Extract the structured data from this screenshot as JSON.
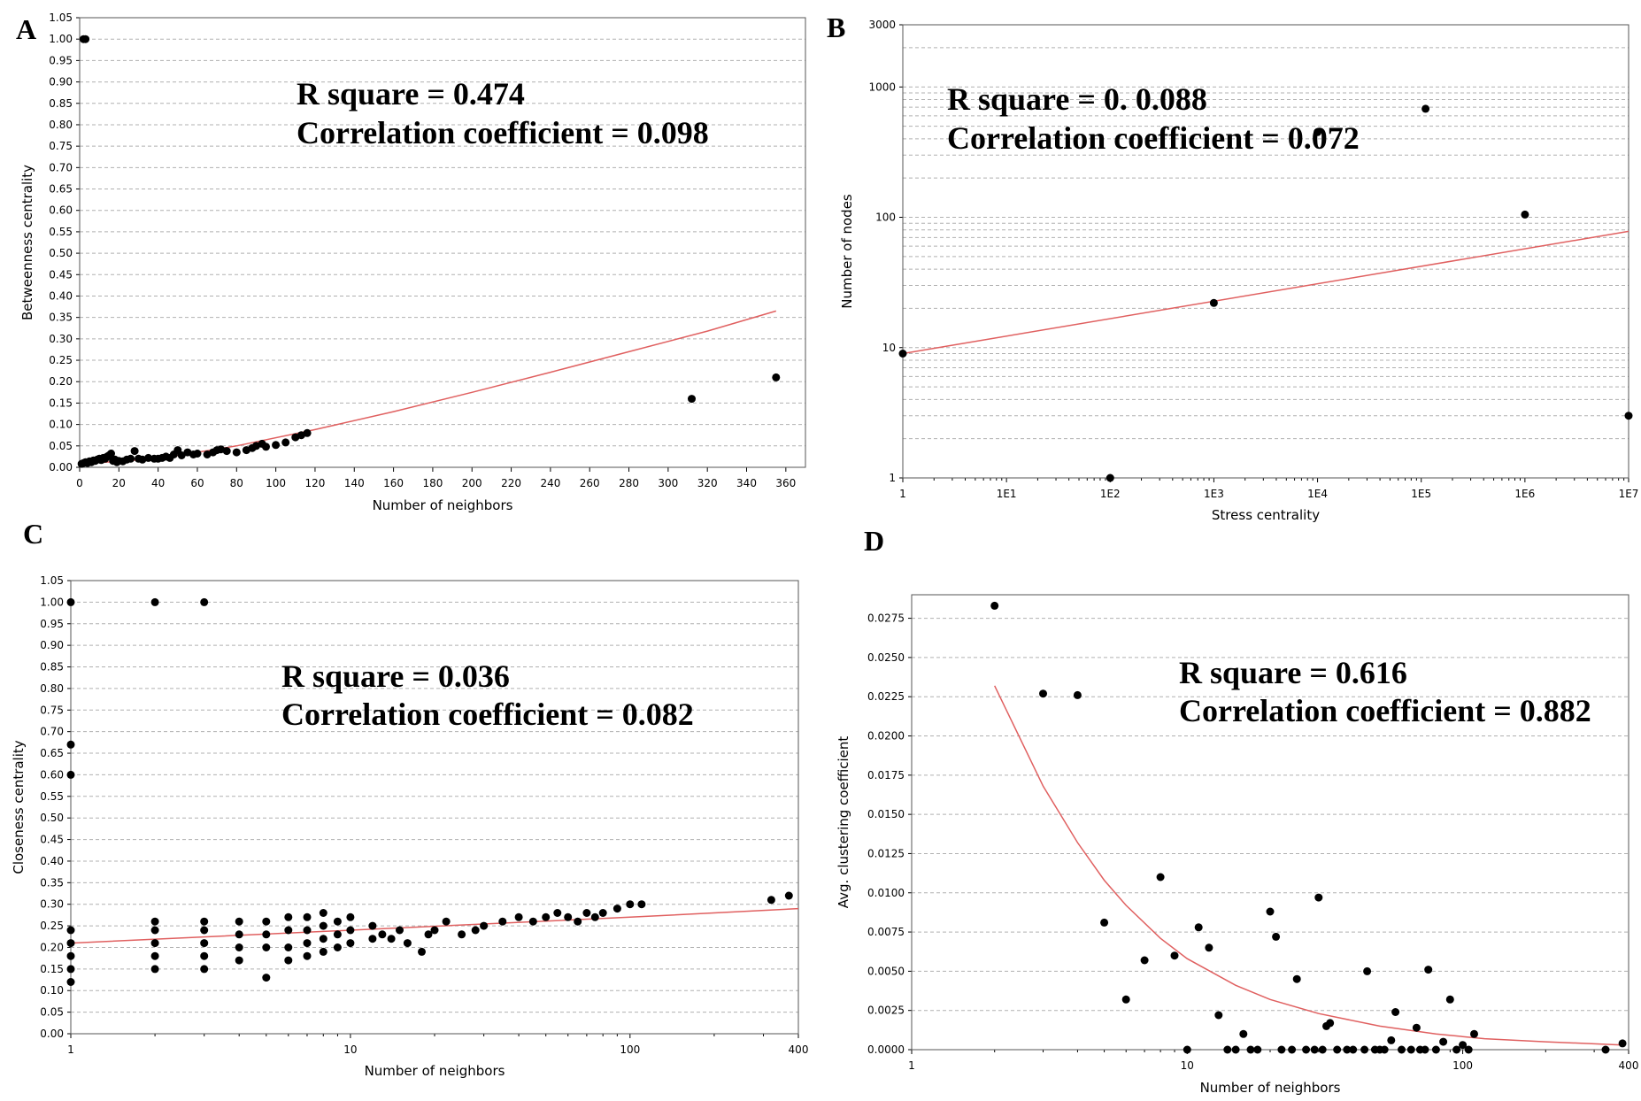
{
  "chart_data": [
    {
      "id": "A",
      "type": "scatter",
      "panel_label": "A",
      "xscale": "linear",
      "yscale": "linear",
      "xlim": [
        0,
        370
      ],
      "ylim": [
        0,
        1.05
      ],
      "xticks": [
        0,
        20,
        40,
        60,
        80,
        100,
        120,
        140,
        160,
        180,
        200,
        220,
        240,
        260,
        280,
        300,
        320,
        340,
        360
      ],
      "xtick_labels": [
        "0",
        "20",
        "40",
        "60",
        "80",
        "100",
        "120",
        "140",
        "160",
        "180",
        "200",
        "220",
        "240",
        "260",
        "280",
        "300",
        "320",
        "340",
        "360"
      ],
      "yticks": [
        0,
        0.05,
        0.1,
        0.15,
        0.2,
        0.25,
        0.3,
        0.35,
        0.4,
        0.45,
        0.5,
        0.55,
        0.6,
        0.65,
        0.7,
        0.75,
        0.8,
        0.85,
        0.9,
        0.95,
        1.0,
        1.05
      ],
      "ytick_labels": [
        "0.00",
        "0.05",
        "0.10",
        "0.15",
        "0.20",
        "0.25",
        "0.30",
        "0.35",
        "0.40",
        "0.45",
        "0.50",
        "0.55",
        "0.60",
        "0.65",
        "0.70",
        "0.75",
        "0.80",
        "0.85",
        "0.90",
        "0.95",
        "1.00",
        "1.05"
      ],
      "xlabel": "Number of neighbors",
      "ylabel": "Betweenness centrality",
      "annotation_line1": "R square = 0.474",
      "annotation_line2": "Correlation coefficient = 0.098",
      "points": [
        [
          2,
          1.0
        ],
        [
          3,
          1.0
        ],
        [
          1,
          0.008
        ],
        [
          2,
          0.01
        ],
        [
          3,
          0.012
        ],
        [
          4,
          0.01
        ],
        [
          5,
          0.014
        ],
        [
          6,
          0.012
        ],
        [
          7,
          0.016
        ],
        [
          8,
          0.015
        ],
        [
          9,
          0.018
        ],
        [
          10,
          0.02
        ],
        [
          11,
          0.017
        ],
        [
          12,
          0.022
        ],
        [
          13,
          0.02
        ],
        [
          14,
          0.025
        ],
        [
          15,
          0.028
        ],
        [
          16,
          0.032
        ],
        [
          17,
          0.015
        ],
        [
          18,
          0.018
        ],
        [
          19,
          0.012
        ],
        [
          20,
          0.015
        ],
        [
          22,
          0.014
        ],
        [
          24,
          0.018
        ],
        [
          26,
          0.02
        ],
        [
          28,
          0.038
        ],
        [
          30,
          0.02
        ],
        [
          32,
          0.018
        ],
        [
          35,
          0.022
        ],
        [
          38,
          0.02
        ],
        [
          40,
          0.02
        ],
        [
          42,
          0.022
        ],
        [
          44,
          0.025
        ],
        [
          46,
          0.022
        ],
        [
          48,
          0.03
        ],
        [
          50,
          0.04
        ],
        [
          52,
          0.028
        ],
        [
          55,
          0.035
        ],
        [
          58,
          0.03
        ],
        [
          60,
          0.032
        ],
        [
          65,
          0.03
        ],
        [
          68,
          0.035
        ],
        [
          70,
          0.04
        ],
        [
          72,
          0.042
        ],
        [
          75,
          0.038
        ],
        [
          80,
          0.035
        ],
        [
          85,
          0.04
        ],
        [
          88,
          0.045
        ],
        [
          90,
          0.05
        ],
        [
          93,
          0.055
        ],
        [
          95,
          0.048
        ],
        [
          100,
          0.052
        ],
        [
          105,
          0.058
        ],
        [
          110,
          0.07
        ],
        [
          113,
          0.075
        ],
        [
          116,
          0.08
        ],
        [
          312,
          0.16
        ],
        [
          355,
          0.21
        ]
      ],
      "fit": [
        [
          0,
          0.008
        ],
        [
          40,
          0.02
        ],
        [
          80,
          0.05
        ],
        [
          120,
          0.088
        ],
        [
          160,
          0.13
        ],
        [
          200,
          0.175
        ],
        [
          240,
          0.222
        ],
        [
          280,
          0.27
        ],
        [
          320,
          0.318
        ],
        [
          355,
          0.365
        ]
      ]
    },
    {
      "id": "B",
      "type": "scatter",
      "panel_label": "B",
      "xscale": "log",
      "yscale": "log",
      "xlim": [
        1,
        10000000
      ],
      "ylim": [
        1,
        3000
      ],
      "xticks": [
        1,
        10,
        100,
        1000,
        10000,
        100000,
        1000000,
        10000000
      ],
      "xtick_labels": [
        "1",
        "1E1",
        "1E2",
        "1E3",
        "1E4",
        "1E5",
        "1E6",
        "1E7"
      ],
      "yticks": [
        1,
        10,
        100,
        1000,
        3000
      ],
      "ytick_labels": [
        "1",
        "10",
        "100",
        "1000",
        "3000"
      ],
      "xlabel": "Stress centrality",
      "ylabel": "Number of nodes",
      "annotation_line1": "R square = 0. 0.088",
      "annotation_line2": "Correlation coefficient = 0.072",
      "points": [
        [
          1,
          9
        ],
        [
          100,
          1
        ],
        [
          1000,
          22
        ],
        [
          10000,
          450
        ],
        [
          110000,
          680
        ],
        [
          1000000,
          105
        ],
        [
          10000000,
          3
        ]
      ],
      "fit": [
        [
          1,
          9
        ],
        [
          10000000,
          78
        ]
      ]
    },
    {
      "id": "C",
      "type": "scatter",
      "panel_label": "C",
      "xscale": "log",
      "yscale": "linear",
      "xlim": [
        1,
        400
      ],
      "ylim": [
        0,
        1.05
      ],
      "xticks": [
        1,
        10,
        100,
        400
      ],
      "xtick_labels": [
        "1",
        "10",
        "100",
        "400"
      ],
      "yticks": [
        0,
        0.05,
        0.1,
        0.15,
        0.2,
        0.25,
        0.3,
        0.35,
        0.4,
        0.45,
        0.5,
        0.55,
        0.6,
        0.65,
        0.7,
        0.75,
        0.8,
        0.85,
        0.9,
        0.95,
        1.0,
        1.05
      ],
      "ytick_labels": [
        "0.00",
        "0.05",
        "0.10",
        "0.15",
        "0.20",
        "0.25",
        "0.30",
        "0.35",
        "0.40",
        "0.45",
        "0.50",
        "0.55",
        "0.60",
        "0.65",
        "0.70",
        "0.75",
        "0.80",
        "0.85",
        "0.90",
        "0.95",
        "1.00",
        "1.05"
      ],
      "xlabel": "Number of neighbors",
      "ylabel": "Closeness centrality",
      "annotation_line1": "R square = 0.036",
      "annotation_line2": "Correlation coefficient = 0.082",
      "points": [
        [
          1,
          1.0
        ],
        [
          1,
          0.67
        ],
        [
          1,
          0.6
        ],
        [
          2,
          1.0
        ],
        [
          3,
          1.0
        ],
        [
          1,
          0.12
        ],
        [
          1,
          0.15
        ],
        [
          1,
          0.18
        ],
        [
          1,
          0.21
        ],
        [
          1,
          0.24
        ],
        [
          2,
          0.15
        ],
        [
          2,
          0.18
        ],
        [
          2,
          0.21
        ],
        [
          2,
          0.24
        ],
        [
          2,
          0.26
        ],
        [
          3,
          0.15
        ],
        [
          3,
          0.18
        ],
        [
          3,
          0.21
        ],
        [
          3,
          0.24
        ],
        [
          3,
          0.26
        ],
        [
          4,
          0.17
        ],
        [
          4,
          0.2
        ],
        [
          4,
          0.23
        ],
        [
          4,
          0.26
        ],
        [
          5,
          0.13
        ],
        [
          5,
          0.2
        ],
        [
          5,
          0.23
        ],
        [
          5,
          0.26
        ],
        [
          6,
          0.17
        ],
        [
          6,
          0.2
        ],
        [
          6,
          0.24
        ],
        [
          6,
          0.27
        ],
        [
          7,
          0.18
        ],
        [
          7,
          0.21
        ],
        [
          7,
          0.24
        ],
        [
          7,
          0.27
        ],
        [
          8,
          0.19
        ],
        [
          8,
          0.22
        ],
        [
          8,
          0.25
        ],
        [
          8,
          0.28
        ],
        [
          9,
          0.2
        ],
        [
          9,
          0.23
        ],
        [
          9,
          0.26
        ],
        [
          10,
          0.21
        ],
        [
          10,
          0.24
        ],
        [
          10,
          0.27
        ],
        [
          12,
          0.22
        ],
        [
          12,
          0.25
        ],
        [
          13,
          0.23
        ],
        [
          14,
          0.22
        ],
        [
          15,
          0.24
        ],
        [
          16,
          0.21
        ],
        [
          18,
          0.19
        ],
        [
          19,
          0.23
        ],
        [
          20,
          0.24
        ],
        [
          22,
          0.26
        ],
        [
          25,
          0.23
        ],
        [
          28,
          0.24
        ],
        [
          30,
          0.25
        ],
        [
          35,
          0.26
        ],
        [
          40,
          0.27
        ],
        [
          45,
          0.26
        ],
        [
          50,
          0.27
        ],
        [
          55,
          0.28
        ],
        [
          60,
          0.27
        ],
        [
          65,
          0.26
        ],
        [
          70,
          0.28
        ],
        [
          75,
          0.27
        ],
        [
          80,
          0.28
        ],
        [
          90,
          0.29
        ],
        [
          100,
          0.3
        ],
        [
          110,
          0.3
        ],
        [
          320,
          0.31
        ],
        [
          370,
          0.32
        ]
      ],
      "fit": [
        [
          1,
          0.21
        ],
        [
          10,
          0.24
        ],
        [
          100,
          0.27
        ],
        [
          400,
          0.29
        ]
      ]
    },
    {
      "id": "D",
      "type": "scatter",
      "panel_label": "D",
      "xscale": "log",
      "yscale": "linear",
      "xlim": [
        1,
        400
      ],
      "ylim": [
        0,
        0.029
      ],
      "xticks": [
        1,
        10,
        100,
        400
      ],
      "xtick_labels": [
        "1",
        "10",
        "100",
        "400"
      ],
      "yticks": [
        0,
        0.0025,
        0.005,
        0.0075,
        0.01,
        0.0125,
        0.015,
        0.0175,
        0.02,
        0.0225,
        0.025,
        0.0275
      ],
      "ytick_labels": [
        "0.0000",
        "0.0025",
        "0.0050",
        "0.0075",
        "0.0100",
        "0.0125",
        "0.0150",
        "0.0175",
        "0.0200",
        "0.0225",
        "0.0250",
        "0.0275"
      ],
      "xlabel": "Number of neighbors",
      "ylabel": "Avg. clustering coefficient",
      "annotation_line1": "R square = 0.616",
      "annotation_line2": "Correlation coefficient = 0.882",
      "points": [
        [
          2,
          0.0283
        ],
        [
          3,
          0.0227
        ],
        [
          4,
          0.0226
        ],
        [
          5,
          0.0081
        ],
        [
          6,
          0.0032
        ],
        [
          7,
          0.0057
        ],
        [
          8,
          0.011
        ],
        [
          9,
          0.006
        ],
        [
          10,
          0.0
        ],
        [
          11,
          0.0078
        ],
        [
          12,
          0.0065
        ],
        [
          13,
          0.0022
        ],
        [
          14,
          0.0
        ],
        [
          15,
          0.0
        ],
        [
          16,
          0.001
        ],
        [
          17,
          0.0
        ],
        [
          18,
          0.0
        ],
        [
          20,
          0.0088
        ],
        [
          21,
          0.0072
        ],
        [
          22,
          0.0
        ],
        [
          24,
          0.0
        ],
        [
          25,
          0.0045
        ],
        [
          27,
          0.0
        ],
        [
          29,
          0.0
        ],
        [
          30,
          0.0097
        ],
        [
          31,
          0.0
        ],
        [
          32,
          0.0015
        ],
        [
          33,
          0.0017
        ],
        [
          35,
          0.0
        ],
        [
          38,
          0.0
        ],
        [
          40,
          0.0
        ],
        [
          44,
          0.0
        ],
        [
          45,
          0.005
        ],
        [
          48,
          0.0
        ],
        [
          50,
          0.0
        ],
        [
          52,
          0.0
        ],
        [
          55,
          0.0006
        ],
        [
          57,
          0.0024
        ],
        [
          60,
          0.0
        ],
        [
          65,
          0.0
        ],
        [
          68,
          0.0014
        ],
        [
          70,
          0.0
        ],
        [
          73,
          0.0
        ],
        [
          75,
          0.0051
        ],
        [
          80,
          0.0
        ],
        [
          85,
          0.0005
        ],
        [
          90,
          0.0032
        ],
        [
          95,
          0.0
        ],
        [
          100,
          0.0003
        ],
        [
          105,
          0.0
        ],
        [
          110,
          0.001
        ],
        [
          330,
          0.0
        ],
        [
          380,
          0.0004
        ]
      ],
      "fit": [
        [
          2,
          0.0232
        ],
        [
          3,
          0.0168
        ],
        [
          4,
          0.0132
        ],
        [
          5,
          0.0108
        ],
        [
          6,
          0.0092
        ],
        [
          8,
          0.0071
        ],
        [
          10,
          0.0058
        ],
        [
          15,
          0.0041
        ],
        [
          20,
          0.0032
        ],
        [
          30,
          0.0023
        ],
        [
          50,
          0.0015
        ],
        [
          80,
          0.001
        ],
        [
          120,
          0.0007
        ],
        [
          200,
          0.0005
        ],
        [
          380,
          0.0003
        ]
      ]
    }
  ]
}
